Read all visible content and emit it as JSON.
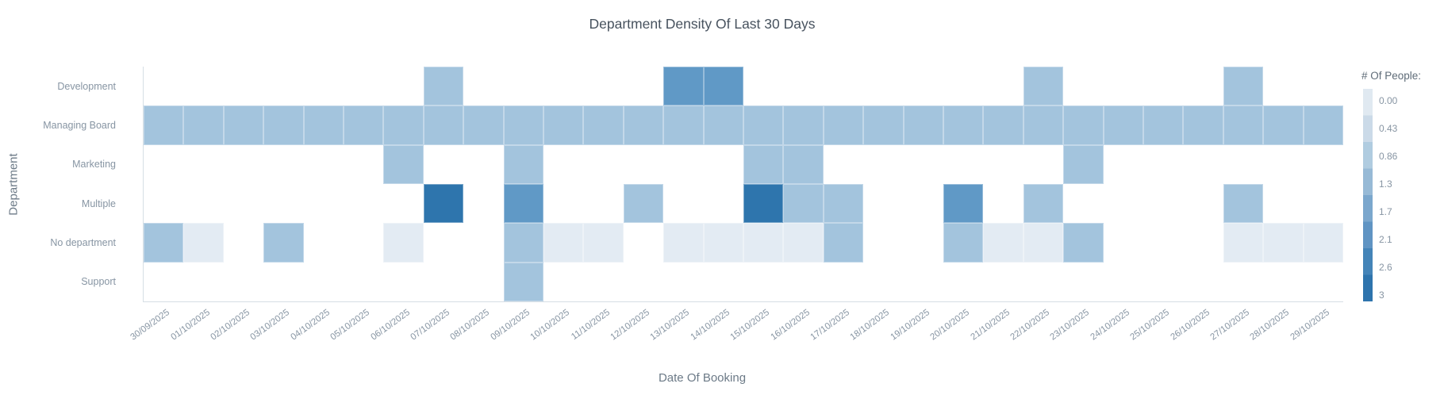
{
  "chart_data": {
    "type": "heatmap",
    "title": "Department Density Of Last 30 Days",
    "xlabel": "Date Of Booking",
    "ylabel": "Department",
    "legend_title": "# Of People:",
    "x": [
      "30/09/2025",
      "01/10/2025",
      "02/10/2025",
      "03/10/2025",
      "04/10/2025",
      "05/10/2025",
      "06/10/2025",
      "07/10/2025",
      "08/10/2025",
      "09/10/2025",
      "10/10/2025",
      "11/10/2025",
      "12/10/2025",
      "13/10/2025",
      "14/10/2025",
      "15/10/2025",
      "16/10/2025",
      "17/10/2025",
      "18/10/2025",
      "19/10/2025",
      "20/10/2025",
      "21/10/2025",
      "22/10/2025",
      "23/10/2025",
      "24/10/2025",
      "25/10/2025",
      "26/10/2025",
      "27/10/2025",
      "28/10/2025",
      "29/10/2025"
    ],
    "y": [
      "Development",
      "Managing Board",
      "Marketing",
      "Multiple",
      "No department",
      "Support"
    ],
    "z": [
      [
        null,
        null,
        null,
        null,
        null,
        null,
        null,
        1,
        null,
        null,
        null,
        null,
        null,
        2,
        2,
        null,
        null,
        null,
        null,
        null,
        null,
        null,
        1,
        null,
        null,
        null,
        null,
        1,
        null,
        null
      ],
      [
        1,
        1,
        1,
        1,
        1,
        1,
        1,
        1,
        1,
        1,
        1,
        1,
        1,
        1,
        1,
        1,
        1,
        1,
        1,
        1,
        1,
        1,
        1,
        1,
        1,
        1,
        1,
        1,
        1,
        1
      ],
      [
        null,
        null,
        null,
        null,
        null,
        null,
        1,
        null,
        null,
        1,
        null,
        null,
        null,
        null,
        null,
        1,
        1,
        null,
        null,
        null,
        null,
        null,
        null,
        1,
        null,
        null,
        null,
        null,
        null,
        null
      ],
      [
        null,
        null,
        null,
        null,
        null,
        null,
        null,
        3,
        null,
        2,
        null,
        null,
        1,
        null,
        null,
        3,
        1,
        1,
        null,
        null,
        2,
        null,
        1,
        null,
        null,
        null,
        null,
        1,
        null,
        null
      ],
      [
        1,
        0,
        null,
        1,
        null,
        null,
        0,
        null,
        null,
        1,
        0,
        0,
        null,
        0,
        0,
        0,
        0,
        1,
        null,
        null,
        1,
        0,
        0,
        1,
        null,
        null,
        null,
        0,
        0,
        0
      ],
      [
        null,
        null,
        null,
        null,
        null,
        null,
        null,
        null,
        null,
        1,
        null,
        null,
        null,
        null,
        null,
        null,
        null,
        null,
        null,
        null,
        null,
        null,
        null,
        null,
        null,
        null,
        null,
        null,
        null,
        null
      ]
    ],
    "zmin": 0,
    "zmax": 3,
    "palette": {
      "0": "#e3ebf3",
      "1": "#a3c4dd",
      "2": "#6099c6",
      "3": "#2e75ad"
    },
    "colorbar_ticks": [
      "0.00",
      "0.43",
      "0.86",
      "1.3",
      "1.7",
      "2.1",
      "2.6",
      "3"
    ],
    "colorbar_colors": [
      "#e0e9f1",
      "#cbdae8",
      "#b0cce0",
      "#97bad6",
      "#7ba7cd",
      "#6094c3",
      "#4484b8",
      "#2e74ad"
    ],
    "grid": false,
    "legend_position": "right",
    "x_tick_angle": -36
  }
}
